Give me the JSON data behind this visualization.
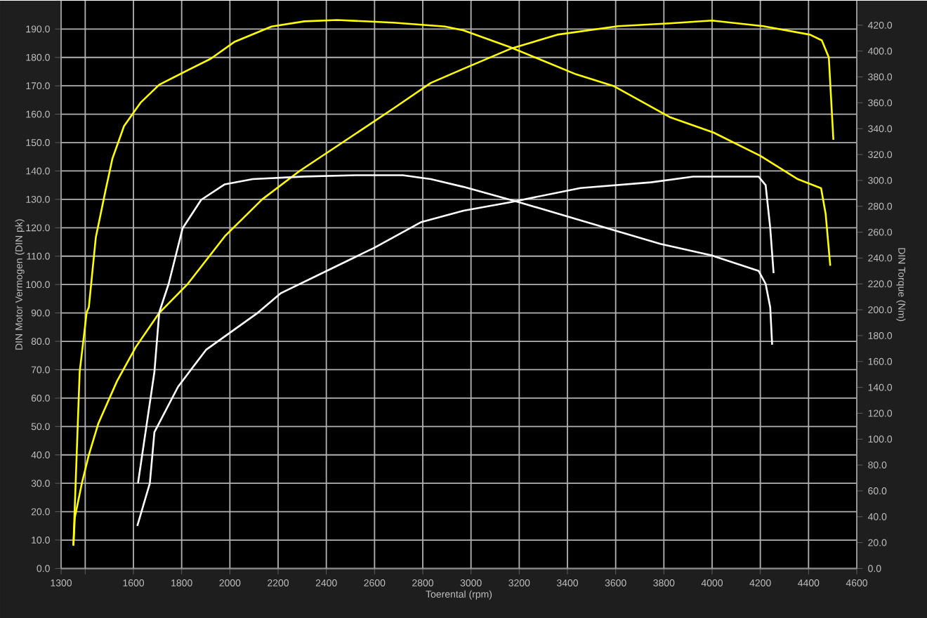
{
  "chart_data": {
    "type": "line",
    "xlabel": "Toerental (rpm)",
    "ylabel": "DIN Motor Vermogen (DIN pk)",
    "y2label": "DIN Torque (Nm)",
    "xlim": [
      1300,
      4600
    ],
    "xticks": [
      1300,
      {
        "value": 1400,
        "label": null
      },
      1600,
      1800,
      2000,
      2200,
      2400,
      2600,
      2800,
      3000,
      3200,
      3400,
      3600,
      3800,
      4000,
      4200,
      4400,
      4600
    ],
    "ylim": [
      0,
      200
    ],
    "yticks": [
      {
        "value": 0,
        "label": "0.0"
      },
      {
        "value": 10,
        "label": "10.0"
      },
      {
        "value": 20,
        "label": "20.0"
      },
      {
        "value": 30,
        "label": "30.0"
      },
      {
        "value": 40,
        "label": "40.0"
      },
      {
        "value": 50,
        "label": "50.0"
      },
      {
        "value": 60,
        "label": "60.0"
      },
      {
        "value": 70,
        "label": "70.0"
      },
      {
        "value": 80,
        "label": "80.0"
      },
      {
        "value": 90,
        "label": "90.0"
      },
      {
        "value": 100,
        "label": "100.0"
      },
      {
        "value": 110,
        "label": "110.0"
      },
      {
        "value": 120,
        "label": "120.0"
      },
      {
        "value": 130,
        "label": "130.0"
      },
      {
        "value": 140,
        "label": "140.0"
      },
      {
        "value": 150,
        "label": "150.0"
      },
      {
        "value": 160,
        "label": "160.0"
      },
      {
        "value": 170,
        "label": "170.0"
      },
      {
        "value": 180,
        "label": "180.0"
      },
      {
        "value": 190,
        "label": "190.0"
      }
    ],
    "y2lim": [
      0,
      439
    ],
    "y2ticks": [
      {
        "value": 0,
        "label": "0.0"
      },
      {
        "value": 20,
        "label": "20.0"
      },
      {
        "value": 40,
        "label": "40.0"
      },
      {
        "value": 60,
        "label": "60.0"
      },
      {
        "value": 80,
        "label": "80.0"
      },
      {
        "value": 100,
        "label": "100.0"
      },
      {
        "value": 120,
        "label": "120.0"
      },
      {
        "value": 140,
        "label": "140.0"
      },
      {
        "value": 160,
        "label": "160.0"
      },
      {
        "value": 180,
        "label": "180.0"
      },
      {
        "value": 200,
        "label": "200.0"
      },
      {
        "value": 220,
        "label": "220.0"
      },
      {
        "value": 240,
        "label": "240.0"
      },
      {
        "value": 260,
        "label": "260.0"
      },
      {
        "value": 280,
        "label": "280.0"
      },
      {
        "value": 300,
        "label": "300.0"
      },
      {
        "value": 320,
        "label": "320.0"
      },
      {
        "value": 340,
        "label": "340.0"
      },
      {
        "value": 360,
        "label": "360.0"
      },
      {
        "value": 380,
        "label": "380.0"
      },
      {
        "value": 400,
        "label": "400.0"
      },
      {
        "value": 420,
        "label": "420.0"
      }
    ],
    "grid": true,
    "series": [
      {
        "color": "#ffff00",
        "axis": "y2",
        "x": [
          1351,
          1377,
          1406,
          1415,
          1444,
          1484,
          1513,
          1561,
          1629,
          1707,
          1823,
          1920,
          2018,
          2173,
          2309,
          2445,
          2678,
          2892,
          2969,
          3163,
          3436,
          3591,
          3824,
          4006,
          4200,
          4355,
          4452,
          4471,
          4490
        ],
        "values": [
          18,
          152,
          198,
          202,
          256,
          292,
          317,
          342,
          360,
          374,
          385,
          394,
          407,
          419,
          423,
          424,
          422,
          419,
          416,
          403,
          382,
          373,
          349,
          337,
          319,
          301,
          294,
          274,
          234
        ]
      },
      {
        "color": "#ffff00",
        "axis": "y",
        "x": [
          1351,
          1357,
          1386,
          1415,
          1454,
          1532,
          1610,
          1707,
          1823,
          1979,
          2134,
          2289,
          2484,
          2678,
          2833,
          2969,
          3163,
          3358,
          3610,
          3824,
          3999,
          4212,
          4406,
          4455,
          4484,
          4503
        ],
        "values": [
          8,
          18,
          30,
          40,
          51,
          66,
          78,
          90,
          100,
          117,
          130,
          140,
          151,
          162,
          171,
          176,
          183,
          188,
          191,
          192,
          193,
          191,
          188,
          186,
          180,
          151
        ]
      },
      {
        "color": "#ffffff",
        "axis": "y2",
        "x": [
          1619,
          1687,
          1707,
          1746,
          1804,
          1881,
          1979,
          2095,
          2309,
          2522,
          2717,
          2833,
          2969,
          3202,
          3474,
          3785,
          3999,
          4193,
          4222,
          4241,
          4249
        ],
        "values": [
          66,
          152,
          198,
          220,
          263,
          285,
          297,
          301,
          303,
          304,
          304,
          301,
          295,
          283,
          268,
          251,
          242,
          230,
          220,
          202,
          173
        ]
      },
      {
        "color": "#ffffff",
        "axis": "y",
        "x": [
          1616,
          1668,
          1687,
          1785,
          1901,
          2115,
          2212,
          2406,
          2600,
          2794,
          2969,
          3163,
          3454,
          3746,
          3921,
          4193,
          4222,
          4241,
          4255
        ],
        "values": [
          15,
          30,
          48,
          64,
          77,
          90,
          97,
          105,
          113,
          122,
          126,
          129,
          134,
          136,
          138,
          138,
          135,
          120,
          104
        ]
      }
    ]
  }
}
